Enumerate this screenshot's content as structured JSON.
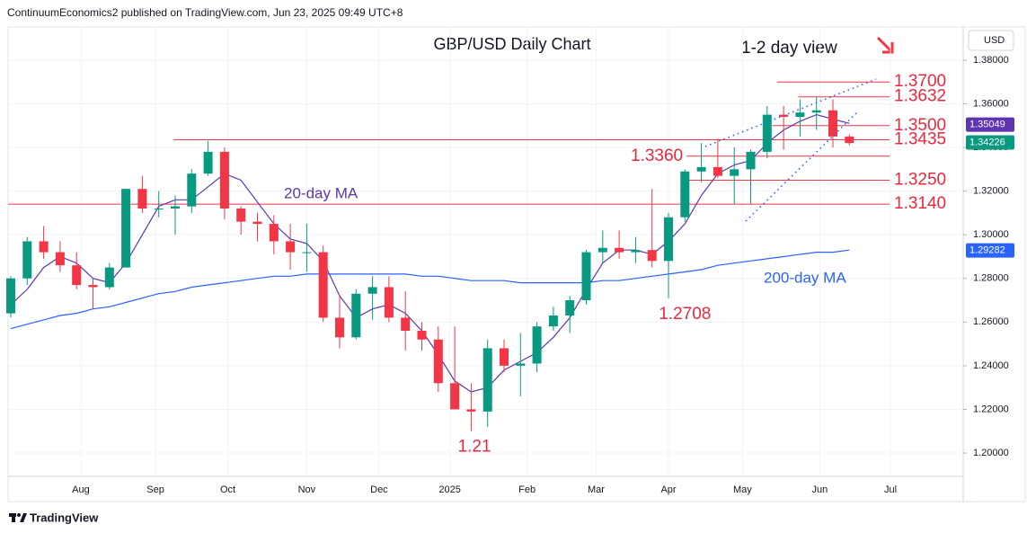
{
  "chart_data": {
    "type": "candlestick",
    "header": "ContinuumEconomics2 published on TradingView.com, Jun 23, 2025 09:49 UTC+8",
    "title": "GBP/USD Daily Chart",
    "subtitle": "1-2 day view",
    "currency": "USD",
    "footer": "TradingView",
    "up_color": "#089981",
    "down_color": "#f23645",
    "ylim": [
      1.1893,
      1.3952
    ],
    "yticks": [
      {
        "value": 1.2,
        "label": "1.20000"
      },
      {
        "value": 1.22,
        "label": "1.22000"
      },
      {
        "value": 1.24,
        "label": "1.24000"
      },
      {
        "value": 1.26,
        "label": "1.26000"
      },
      {
        "value": 1.28,
        "label": "1.28000"
      },
      {
        "value": 1.3,
        "label": "1.30000"
      },
      {
        "value": 1.32,
        "label": "1.32000"
      },
      {
        "value": 1.34,
        "label": "1.34000"
      },
      {
        "value": 1.36,
        "label": "1.36000"
      },
      {
        "value": 1.38,
        "label": "1.38000"
      }
    ],
    "xticks": [
      {
        "value": 4.26,
        "label": "Aug"
      },
      {
        "value": 8.8,
        "label": "Sep"
      },
      {
        "value": 13.2,
        "label": "Oct"
      },
      {
        "value": 18.0,
        "label": "Nov"
      },
      {
        "value": 22.4,
        "label": "Dec"
      },
      {
        "value": 26.7,
        "label": "2025"
      },
      {
        "value": 31.4,
        "label": "Feb"
      },
      {
        "value": 35.6,
        "label": "Mar"
      },
      {
        "value": 40.0,
        "label": "Apr"
      },
      {
        "value": 44.5,
        "label": "May"
      },
      {
        "value": 49.2,
        "label": "Jun"
      },
      {
        "value": 53.5,
        "label": "Jul"
      }
    ],
    "candles": {
      "open": [
        1.264,
        1.28,
        1.297,
        1.292,
        1.286,
        1.277,
        1.276,
        1.285,
        1.321,
        1.312,
        1.312,
        1.313,
        1.328,
        1.338,
        1.312,
        1.306,
        1.305,
        1.297,
        1.292,
        1.292,
        1.262,
        1.253,
        1.273,
        1.276,
        1.262,
        1.256,
        1.252,
        1.232,
        1.22,
        1.219,
        1.248,
        1.24,
        1.241,
        1.258,
        1.263,
        1.27,
        1.292,
        1.294,
        1.292,
        1.293,
        1.288,
        1.308,
        1.329,
        1.331,
        1.327,
        1.33,
        1.338,
        1.355,
        1.354,
        1.356,
        1.357,
        1.345
      ],
      "high": [
        1.281,
        1.299,
        1.304,
        1.297,
        1.292,
        1.28,
        1.287,
        1.321,
        1.327,
        1.32,
        1.318,
        1.33,
        1.343,
        1.34,
        1.313,
        1.31,
        1.309,
        1.305,
        1.305,
        1.295,
        1.272,
        1.275,
        1.281,
        1.281,
        1.274,
        1.26,
        1.258,
        1.258,
        1.232,
        1.252,
        1.252,
        1.255,
        1.26,
        1.267,
        1.272,
        1.293,
        1.302,
        1.302,
        1.299,
        1.321,
        1.31,
        1.33,
        1.342,
        1.344,
        1.34,
        1.339,
        1.359,
        1.359,
        1.362,
        1.363,
        1.362,
        1.346
      ],
      "low": [
        1.262,
        1.277,
        1.289,
        1.283,
        1.275,
        1.266,
        1.275,
        1.285,
        1.31,
        1.308,
        1.3,
        1.31,
        1.327,
        1.307,
        1.3,
        1.297,
        1.291,
        1.284,
        1.283,
        1.26,
        1.248,
        1.252,
        1.261,
        1.26,
        1.247,
        1.247,
        1.228,
        1.222,
        1.21,
        1.212,
        1.237,
        1.226,
        1.237,
        1.256,
        1.255,
        1.268,
        1.287,
        1.289,
        1.287,
        1.285,
        1.271,
        1.306,
        1.324,
        1.326,
        1.314,
        1.314,
        1.335,
        1.339,
        1.345,
        1.348,
        1.34,
        1.341
      ],
      "close": [
        1.28,
        1.297,
        1.292,
        1.286,
        1.277,
        1.276,
        1.285,
        1.321,
        1.312,
        1.312,
        1.313,
        1.328,
        1.338,
        1.312,
        1.306,
        1.305,
        1.297,
        1.292,
        1.292,
        1.262,
        1.253,
        1.273,
        1.276,
        1.262,
        1.256,
        1.252,
        1.232,
        1.22,
        1.219,
        1.248,
        1.24,
        1.241,
        1.258,
        1.263,
        1.27,
        1.292,
        1.294,
        1.292,
        1.293,
        1.288,
        1.308,
        1.329,
        1.331,
        1.327,
        1.33,
        1.338,
        1.355,
        1.354,
        1.356,
        1.357,
        1.345,
        1.342
      ]
    },
    "series": [
      {
        "name": "20-day MA",
        "color": "#5e35b1",
        "values": [
          1.268,
          1.275,
          1.285,
          1.29,
          1.287,
          1.28,
          1.278,
          1.287,
          1.3,
          1.313,
          1.316,
          1.316,
          1.322,
          1.328,
          1.325,
          1.315,
          1.305,
          1.298,
          1.296,
          1.288,
          1.272,
          1.262,
          1.266,
          1.268,
          1.264,
          1.256,
          1.245,
          1.233,
          1.228,
          1.23,
          1.238,
          1.242,
          1.246,
          1.253,
          1.262,
          1.275,
          1.287,
          1.293,
          1.293,
          1.291,
          1.297,
          1.305,
          1.318,
          1.328,
          1.332,
          1.334,
          1.342,
          1.348,
          1.352,
          1.355,
          1.353,
          1.351
        ]
      },
      {
        "name": "200-day MA",
        "color": "#2962ff",
        "values": [
          1.257,
          1.259,
          1.261,
          1.263,
          1.264,
          1.266,
          1.267,
          1.269,
          1.271,
          1.273,
          1.274,
          1.276,
          1.277,
          1.278,
          1.279,
          1.28,
          1.281,
          1.281,
          1.282,
          1.282,
          1.282,
          1.282,
          1.282,
          1.282,
          1.282,
          1.281,
          1.281,
          1.28,
          1.279,
          1.279,
          1.279,
          1.278,
          1.278,
          1.278,
          1.278,
          1.278,
          1.279,
          1.279,
          1.28,
          1.281,
          1.282,
          1.283,
          1.284,
          1.286,
          1.287,
          1.288,
          1.289,
          1.29,
          1.291,
          1.292,
          1.292,
          1.293
        ]
      }
    ],
    "levels": [
      {
        "value": 1.37,
        "label": "1.3700",
        "start": 46.6,
        "side": "right"
      },
      {
        "value": 1.3632,
        "label": "1.3632",
        "start": 47.9,
        "side": "right"
      },
      {
        "value": 1.35,
        "label": "1.3500",
        "start": 46.3,
        "side": "right"
      },
      {
        "value": 1.3435,
        "label": "1.3435",
        "start": 9.9,
        "side": "right"
      },
      {
        "value": 1.336,
        "label": "1.3360",
        "start": 41.1,
        "side": "left"
      },
      {
        "value": 1.325,
        "label": "1.3250",
        "start": 40.8,
        "side": "right"
      },
      {
        "value": 1.314,
        "label": "1.3140",
        "start": -0.6,
        "side": "right"
      }
    ],
    "annotations": [
      {
        "value": 1.2708,
        "at": 41.0
      },
      {
        "value": 1.21,
        "at": 28.2
      }
    ],
    "price_tags": [
      {
        "value": 1.35049,
        "color": "#5e35b1"
      },
      {
        "value": 1.34226,
        "color": "#089981"
      },
      {
        "value": 1.29282,
        "color": "#2962ff"
      }
    ]
  }
}
